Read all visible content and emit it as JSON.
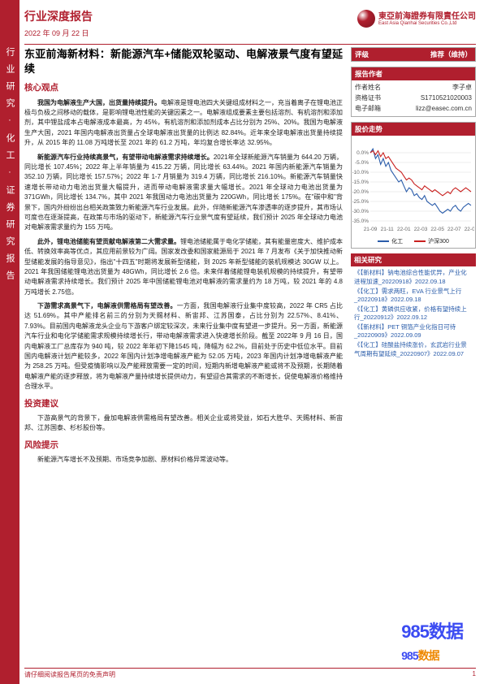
{
  "leftbar": "行业研究·化工·证券研究报告",
  "header": {
    "cat": "行业深度报告",
    "date": "2022 年 09 月 22 日",
    "logo_name": "東亞前海證券有限責任公司",
    "logo_sub": "East Asia Qianhai Securities Co.,Ltd"
  },
  "main": {
    "title": "东亚前海新材料：新能源汽车+储能双轮驱动、电解液景气度有望延续",
    "sections": [
      {
        "head": "核心观点",
        "paras": [
          {
            "b": "我国为电解液生产大国，出货量持续提升。",
            "t": "电解液是锂电池四大关键组成材料之一，充当着离子在锂电池正极与负极之间移动的载体，是影响锂电池性能的关键因素之一。电解液组成要素主要包括溶剂、有机溶剂和添加剂，其中锂盐成本占电解液成本最高，为 45%，有机溶剂和添加剂成本占比分别为 25%、20%。我国为电解液生产大国，2021 年国内电解液出货量占全球电解液出货量的比例达 82.84%。近年来全球电解液出货量持续提升，从 2015 年的 11.08 万吨增长至 2021 年的 61.2 万吨，年均复合增长率达 32.95%。"
          },
          {
            "b": "新能源汽车行业持续高景气，有望带动电解液需求持续增长。",
            "t": "2021年全球新能源汽车销量为 644.20 万辆，同比增长 107.45%；2022 年上半年销量为 415.22 万辆，同比增长 63.44%。2021 年国内新能源汽车销量为 352.10 万辆，同比增长 157.57%；2022 年 1-7 月销量为 319.4 万辆，同比增长 216.10%。新能源汽车销量快速增长带动动力电池出货量大幅提升，进而带动电解液需求量大幅增长。2021 年全球动力电池出货量为 371GWh，同比增长 134.7%，其中 2021 年我国动力电池出货量为 220GWh，同比增长 175%。在\"碳中和\"背景下，国内外纷纷出台相关政策致力新能源汽车行业发展。此外，伴随新能源汽车渗透率的逐步提升，其市场认可度也在逐渐提高，在政策与市场的驱动下，新能源汽车行业景气度有望延续，我们预计 2025 年全球动力电池对电解液需求量约为 155 万吨。"
          },
          {
            "b": "此外，锂电池储能有望贡献电解液第二大需求量。",
            "t": "锂电池储能属于电化学储能，其有能量密度大、维护成本低、转换效率高等优点，其应用前景较为广阔。国家发改委和国家能源局于 2021 年 7 月发布《关于加快推动新型储能发展的指导意见》，指出\"十四五\"时期将发展新型储能，到 2025 年新型储能的装机规模达 30GW 以上。2021 年我国储能锂电池出货量为 48GWh，同比增长 2.6 倍。未来伴着储能锂电装机规模的持续提升，有望带动电解液需求持续增长。我们预计 2025 年中国储能锂电池对电解液的需求量约为 18 万吨，较 2021 年的 4.8 万吨增长 2.75倍。"
          },
          {
            "b": "下游需求高景气下，电解液供需格局有望改善。",
            "t": "一方面，我国电解液行业集中度较高，2022 年 CR5 占比达 51.69%。其中产能排名前三的分别为天赐材料、新宙邦、江苏国泰，占比分别为 22.57%、8.41%、7.93%。目前国内电解液龙头企业与下游客户绑定较深次，未来行业集中度有望进一步提升。另一方面，新能源汽车行业和电化学储能需求规模持续增长行，带动电解液需求进入快速增长阶段。截至 2022年 9 月 16 日，国内电解液工厂总库存为 940 吨，较 2022 年年初下降1545 吨，降幅为 62.2%，目前处于历史中低位水平。目前国内电解液计划产能较多，2022 年国内计划净增电解液产能为 52.05 万吨，2023 年国内计划净增电解液产能为 258.25 万吨。但受疫情影响以及产能释放需要一定的时间，短期内新增电解液产能或将不及预期，长期随着电解液产能的逐步释放，将为电解液产量持续增长提供动力，有望迎合其需求的不断增长，促使电解液价格维持合理水平。"
          }
        ]
      },
      {
        "head": "投资建议",
        "paras": [
          {
            "b": "",
            "t": "下游高景气的背景下，叠加电解液供需格局有望改善。相关企业或将受益，如石大胜华、天赐材料、新宙邦、江苏国泰、杉杉股份等。"
          }
        ]
      },
      {
        "head": "风险提示",
        "paras": [
          {
            "b": "",
            "t": "新能源汽车增长不及预期、市场竞争加剧、原材料价格异常波动等。"
          }
        ]
      }
    ]
  },
  "right": {
    "rating": {
      "label": "评级",
      "value": "推荐（维持）"
    },
    "author": {
      "title": "报告作者",
      "rows": [
        [
          "作者姓名",
          "李子卓"
        ],
        [
          "资格证书",
          "S1710521020003"
        ],
        [
          "电子邮箱",
          "lizz@easec.com.cn"
        ]
      ]
    },
    "chart": {
      "title": "股价走势",
      "ylim": [
        -35,
        5
      ],
      "yticks": [
        0,
        -5,
        -10,
        -15,
        -20,
        -25,
        -30,
        -35
      ],
      "xlabels": [
        "21-09",
        "21-11",
        "22-01",
        "22-03",
        "22-05",
        "22-07",
        "22-09"
      ],
      "series": [
        {
          "name": "化工",
          "color": "#2a5caa",
          "points": [
            0,
            2,
            -3,
            -1,
            -6,
            -3,
            -7,
            -5,
            -9,
            -11,
            -13,
            -15,
            -14,
            -17,
            -20,
            -18,
            -19,
            -22,
            -21,
            -23,
            -24,
            -22,
            -25,
            -26,
            -27,
            -26,
            -28,
            -30,
            -31,
            -30,
            -29,
            -30,
            -28,
            -27,
            -29,
            -30,
            -28,
            -27,
            -26,
            -27
          ]
        },
        {
          "name": "沪深300",
          "color": "#c9201f",
          "points": [
            0,
            1,
            -1,
            1,
            -2,
            0,
            -3,
            -2,
            -4,
            -6,
            -8,
            -9,
            -10,
            -12,
            -14,
            -13,
            -14,
            -16,
            -17,
            -18,
            -19,
            -17,
            -18,
            -19,
            -20,
            -19,
            -20,
            -21,
            -22,
            -21,
            -20,
            -21,
            -19,
            -18,
            -19,
            -20,
            -19,
            -18,
            -19,
            -20
          ]
        }
      ],
      "grid_color": "#d9d9d9",
      "font_size": 6.5
    },
    "related": {
      "title": "相关研究",
      "items": [
        "《【新材料】钠电池综合性能优异，产业化进程加速_20220918》2022.09.18",
        "《【化工】需求两旺，EVA 行业景气上行_20220918》2022.09.18",
        "《【化工】黄磷供应收紧，价格有望持续上行_20220912》2022.09.12",
        "《【新材料】PET 铜箔产业化指日可待_20220909》2022.09.09",
        "《【化工】硅酸盐持续涨价，玄武岩行业景气周期有望延续_20220907》2022.09.07"
      ]
    }
  },
  "footer": {
    "disclaimer": "请仔细阅读报告尾页的免责声明",
    "page": "1"
  },
  "watermark": {
    "a": "985",
    "b": "数据",
    "c": "985",
    "d": "数据"
  }
}
